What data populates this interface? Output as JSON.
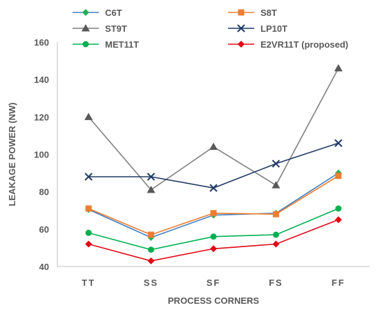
{
  "chart_data": {
    "type": "line",
    "categories": [
      "TT",
      "SS",
      "SF",
      "FS",
      "FF"
    ],
    "xlabel": "PROCESS CORNERS",
    "ylabel": "LEAKAGE POWER (NW)",
    "ylim": [
      40,
      160
    ],
    "yticks": [
      40,
      60,
      80,
      100,
      120,
      140,
      160
    ],
    "grid": false,
    "legend_position": "top",
    "series": [
      {
        "name": "C6T",
        "values": [
          70.5,
          55.5,
          67.5,
          68.5,
          90
        ],
        "color": "#3E7FC1",
        "marker": "diamond",
        "marker_color": "#1DB254"
      },
      {
        "name": "S8T",
        "values": [
          71,
          57,
          68.5,
          68,
          88.5
        ],
        "color": "#ED7D31",
        "marker": "square",
        "marker_color": "#ED7D31"
      },
      {
        "name": "ST9T",
        "values": [
          120,
          81,
          104,
          83.5,
          146
        ],
        "color": "#7F7F7F",
        "marker": "triangle",
        "marker_color": "#595959"
      },
      {
        "name": "LP10T",
        "values": [
          88,
          88,
          82,
          95,
          106
        ],
        "color": "#1F3864",
        "marker": "x",
        "marker_color": "#1F3864"
      },
      {
        "name": "MET11T",
        "values": [
          58,
          49,
          56,
          57,
          71
        ],
        "color": "#00B050",
        "marker": "circle",
        "marker_color": "#00B050"
      },
      {
        "name": "E2VR11T (proposed)",
        "values": [
          52,
          43,
          49.5,
          52,
          65
        ],
        "color": "#E30613",
        "marker": "diamond",
        "marker_color": "#E30613"
      }
    ]
  }
}
